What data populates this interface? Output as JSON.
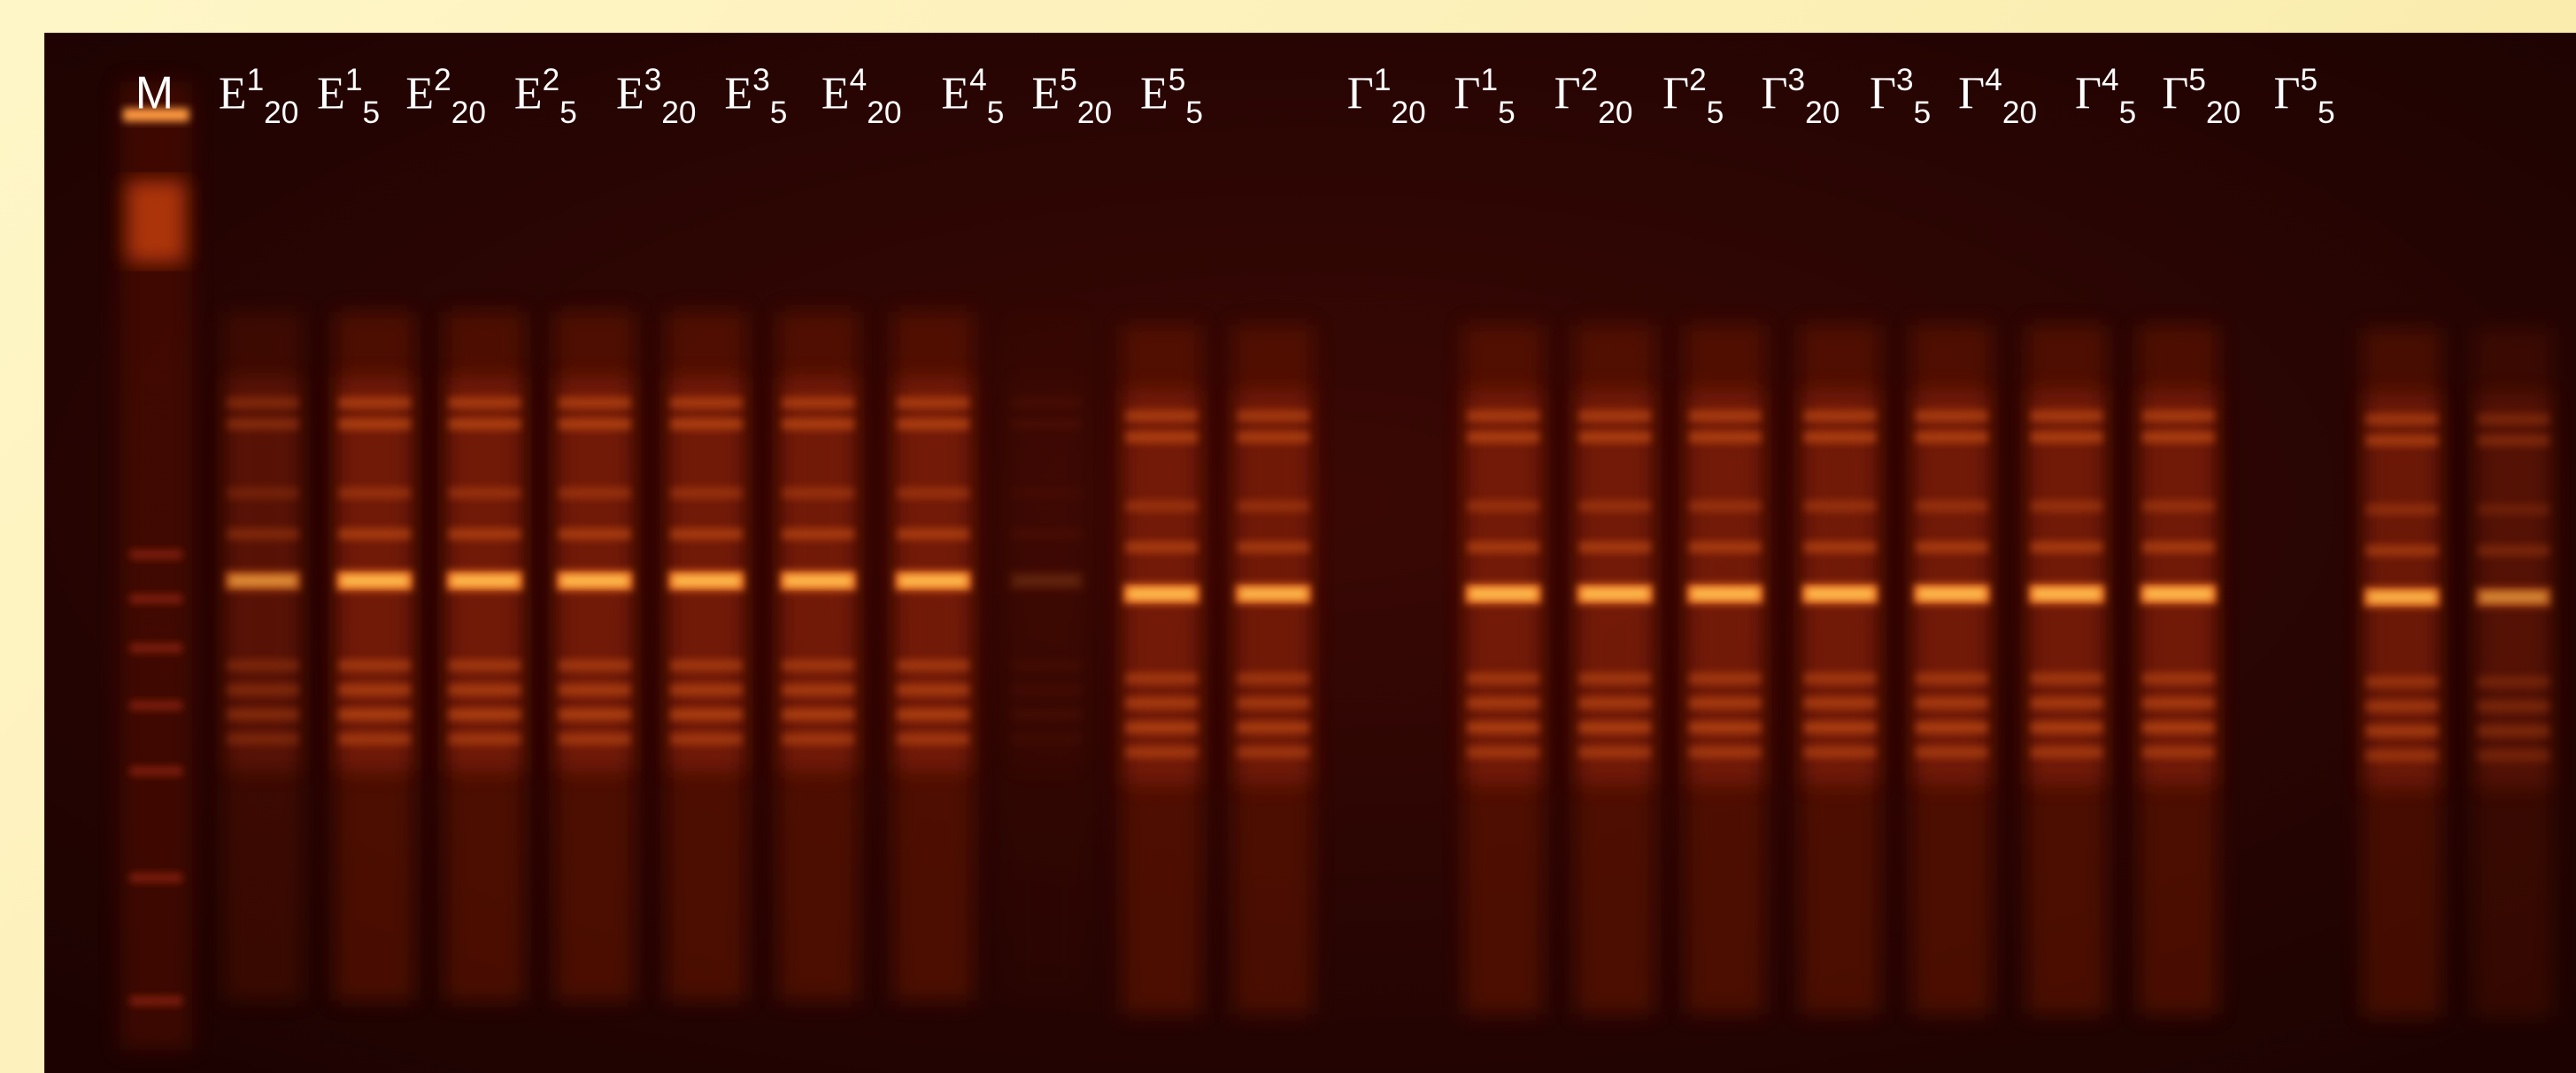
{
  "labels": {
    "marker": "M",
    "lanes": [
      {
        "base": "E",
        "sup": "1",
        "sub": "20"
      },
      {
        "base": "E",
        "sup": "1",
        "sub": "5"
      },
      {
        "base": "E",
        "sup": "2",
        "sub": "20"
      },
      {
        "base": "E",
        "sup": "2",
        "sub": "5"
      },
      {
        "base": "E",
        "sup": "3",
        "sub": "20"
      },
      {
        "base": "E",
        "sup": "3",
        "sub": "5"
      },
      {
        "base": "E",
        "sup": "4",
        "sub": "20"
      },
      {
        "base": "E",
        "sup": "4",
        "sub": "5"
      },
      {
        "base": "E",
        "sup": "5",
        "sub": "20"
      },
      {
        "base": "E",
        "sup": "5",
        "sub": "5"
      },
      {
        "base": "Γ",
        "sup": "1",
        "sub": "20"
      },
      {
        "base": "Γ",
        "sup": "1",
        "sub": "5"
      },
      {
        "base": "Γ",
        "sup": "2",
        "sub": "20"
      },
      {
        "base": "Γ",
        "sup": "2",
        "sub": "5"
      },
      {
        "base": "Γ",
        "sup": "3",
        "sub": "20"
      },
      {
        "base": "Γ",
        "sup": "3",
        "sub": "5"
      },
      {
        "base": "Γ",
        "sup": "4",
        "sub": "20"
      },
      {
        "base": "Γ",
        "sup": "4",
        "sub": "5"
      },
      {
        "base": "Γ",
        "sup": "5",
        "sub": "20"
      },
      {
        "base": "Γ",
        "sup": "5",
        "sub": "5"
      }
    ]
  }
}
